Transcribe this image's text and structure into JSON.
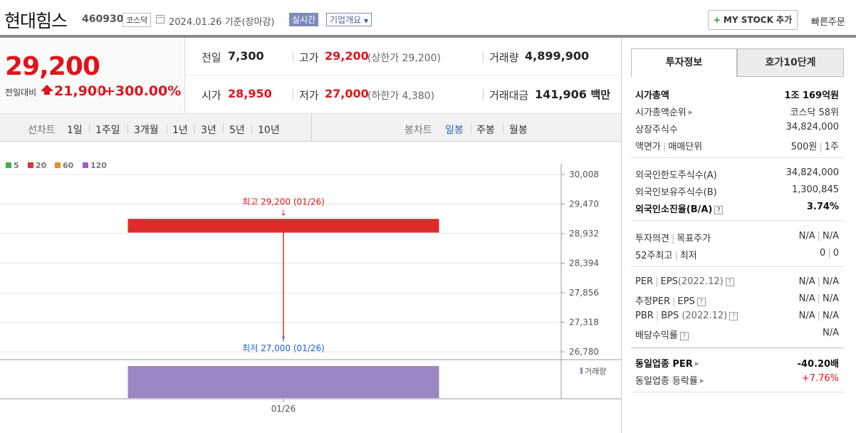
{
  "header": {
    "stock_name": "현대힘스",
    "stock_code": "460930",
    "market": "코스닥",
    "date_text": "2024.01.26 기준(장마감)",
    "realtime_label": "실시간",
    "corp_label": "기업개요",
    "mystock_label": "MY STOCK 추가",
    "quick_order_label": "빠른주문"
  },
  "price": {
    "current": "29,200",
    "change_label": "전일대비",
    "change_value": "21,900",
    "change_pct": "+300.00%"
  },
  "quote": {
    "prev_close_label": "전일",
    "prev_close": "7,300",
    "high_label": "고가",
    "high": "29,200",
    "upper_limit": "(상한가 29,200)",
    "volume_label": "거래량",
    "volume": "4,899,900",
    "open_label": "시가",
    "open": "28,950",
    "low_label": "저가",
    "low": "27,000",
    "lower_limit": "(하한가 4,380)",
    "amount_label": "거래대금",
    "amount": "141,906",
    "amount_unit": "백만"
  },
  "period_tabs": {
    "label": "선차트",
    "items": [
      "1일",
      "1주일",
      "3개월",
      "1년",
      "3년",
      "5년",
      "10년"
    ]
  },
  "candle_tabs": {
    "label": "봉차트",
    "items": [
      "일봉",
      "주봉",
      "월봉"
    ],
    "selected": "일봉"
  },
  "chart_data": {
    "type": "candlestick",
    "legend": [
      {
        "name": "5",
        "color": "#3bb34a"
      },
      {
        "name": "20",
        "color": "#e0333a"
      },
      {
        "name": "60",
        "color": "#f08a24"
      },
      {
        "name": "120",
        "color": "#9b5fc8"
      }
    ],
    "y_ticks": [
      "30,008",
      "29,470",
      "28,932",
      "28,394",
      "27,856",
      "27,318",
      "26,780"
    ],
    "ylim": [
      26780,
      30008
    ],
    "x_ticks": [
      "01/26"
    ],
    "candles": [
      {
        "date": "01/26",
        "open": 28950,
        "high": 29200,
        "low": 27000,
        "close": 29200,
        "volume": 4899900
      }
    ],
    "annotations": {
      "high_label": "최고 29,200 (01/26)",
      "low_label": "최저 27,000 (01/26)"
    },
    "volume_label": "거래량",
    "candle_color": "#e02a2a",
    "volume_color": "#9b86c4"
  },
  "side": {
    "tabs": [
      "투자정보",
      "호가10단계"
    ],
    "market_cap_label": "시가총액",
    "market_cap": "1조 169억원",
    "rank_label": "시가총액순위",
    "rank": "코스닥 58위",
    "shares_label": "상장주식수",
    "shares": "34,824,000",
    "par_label": "액면가",
    "unit_label": "매매단위",
    "par": "500원",
    "unit": "1주",
    "foreign_limit_label": "외국인한도주식수(A)",
    "foreign_limit": "34,824,000",
    "foreign_hold_label": "외국인보유주식수(B)",
    "foreign_hold": "1,300,845",
    "foreign_rate_label": "외국인소진율(B/A)",
    "foreign_rate": "3.74%",
    "opinion_label": "투자의견",
    "target_label": "목표주가",
    "opinion": "N/A",
    "target": "N/A",
    "w52_high_label": "52주최고",
    "w52_low_label": "최저",
    "w52_high": "0",
    "w52_low": "0",
    "per_label": "PER",
    "eps_label": "EPS",
    "eps_year": "(2022.12)",
    "per": "N/A",
    "eps": "N/A",
    "est_per_label": "추정PER",
    "est_eps_label": "EPS",
    "est_per": "N/A",
    "est_eps": "N/A",
    "pbr_label": "PBR",
    "bps_label": "BPS",
    "bps_year": "(2022.12)",
    "pbr": "N/A",
    "bps": "N/A",
    "div_label": "배당수익률",
    "div": "N/A",
    "ind_per_label": "동일업종 PER",
    "ind_per": "-40.20배",
    "ind_rate_label": "동일업종 등락률",
    "ind_rate": "+7.76%"
  }
}
